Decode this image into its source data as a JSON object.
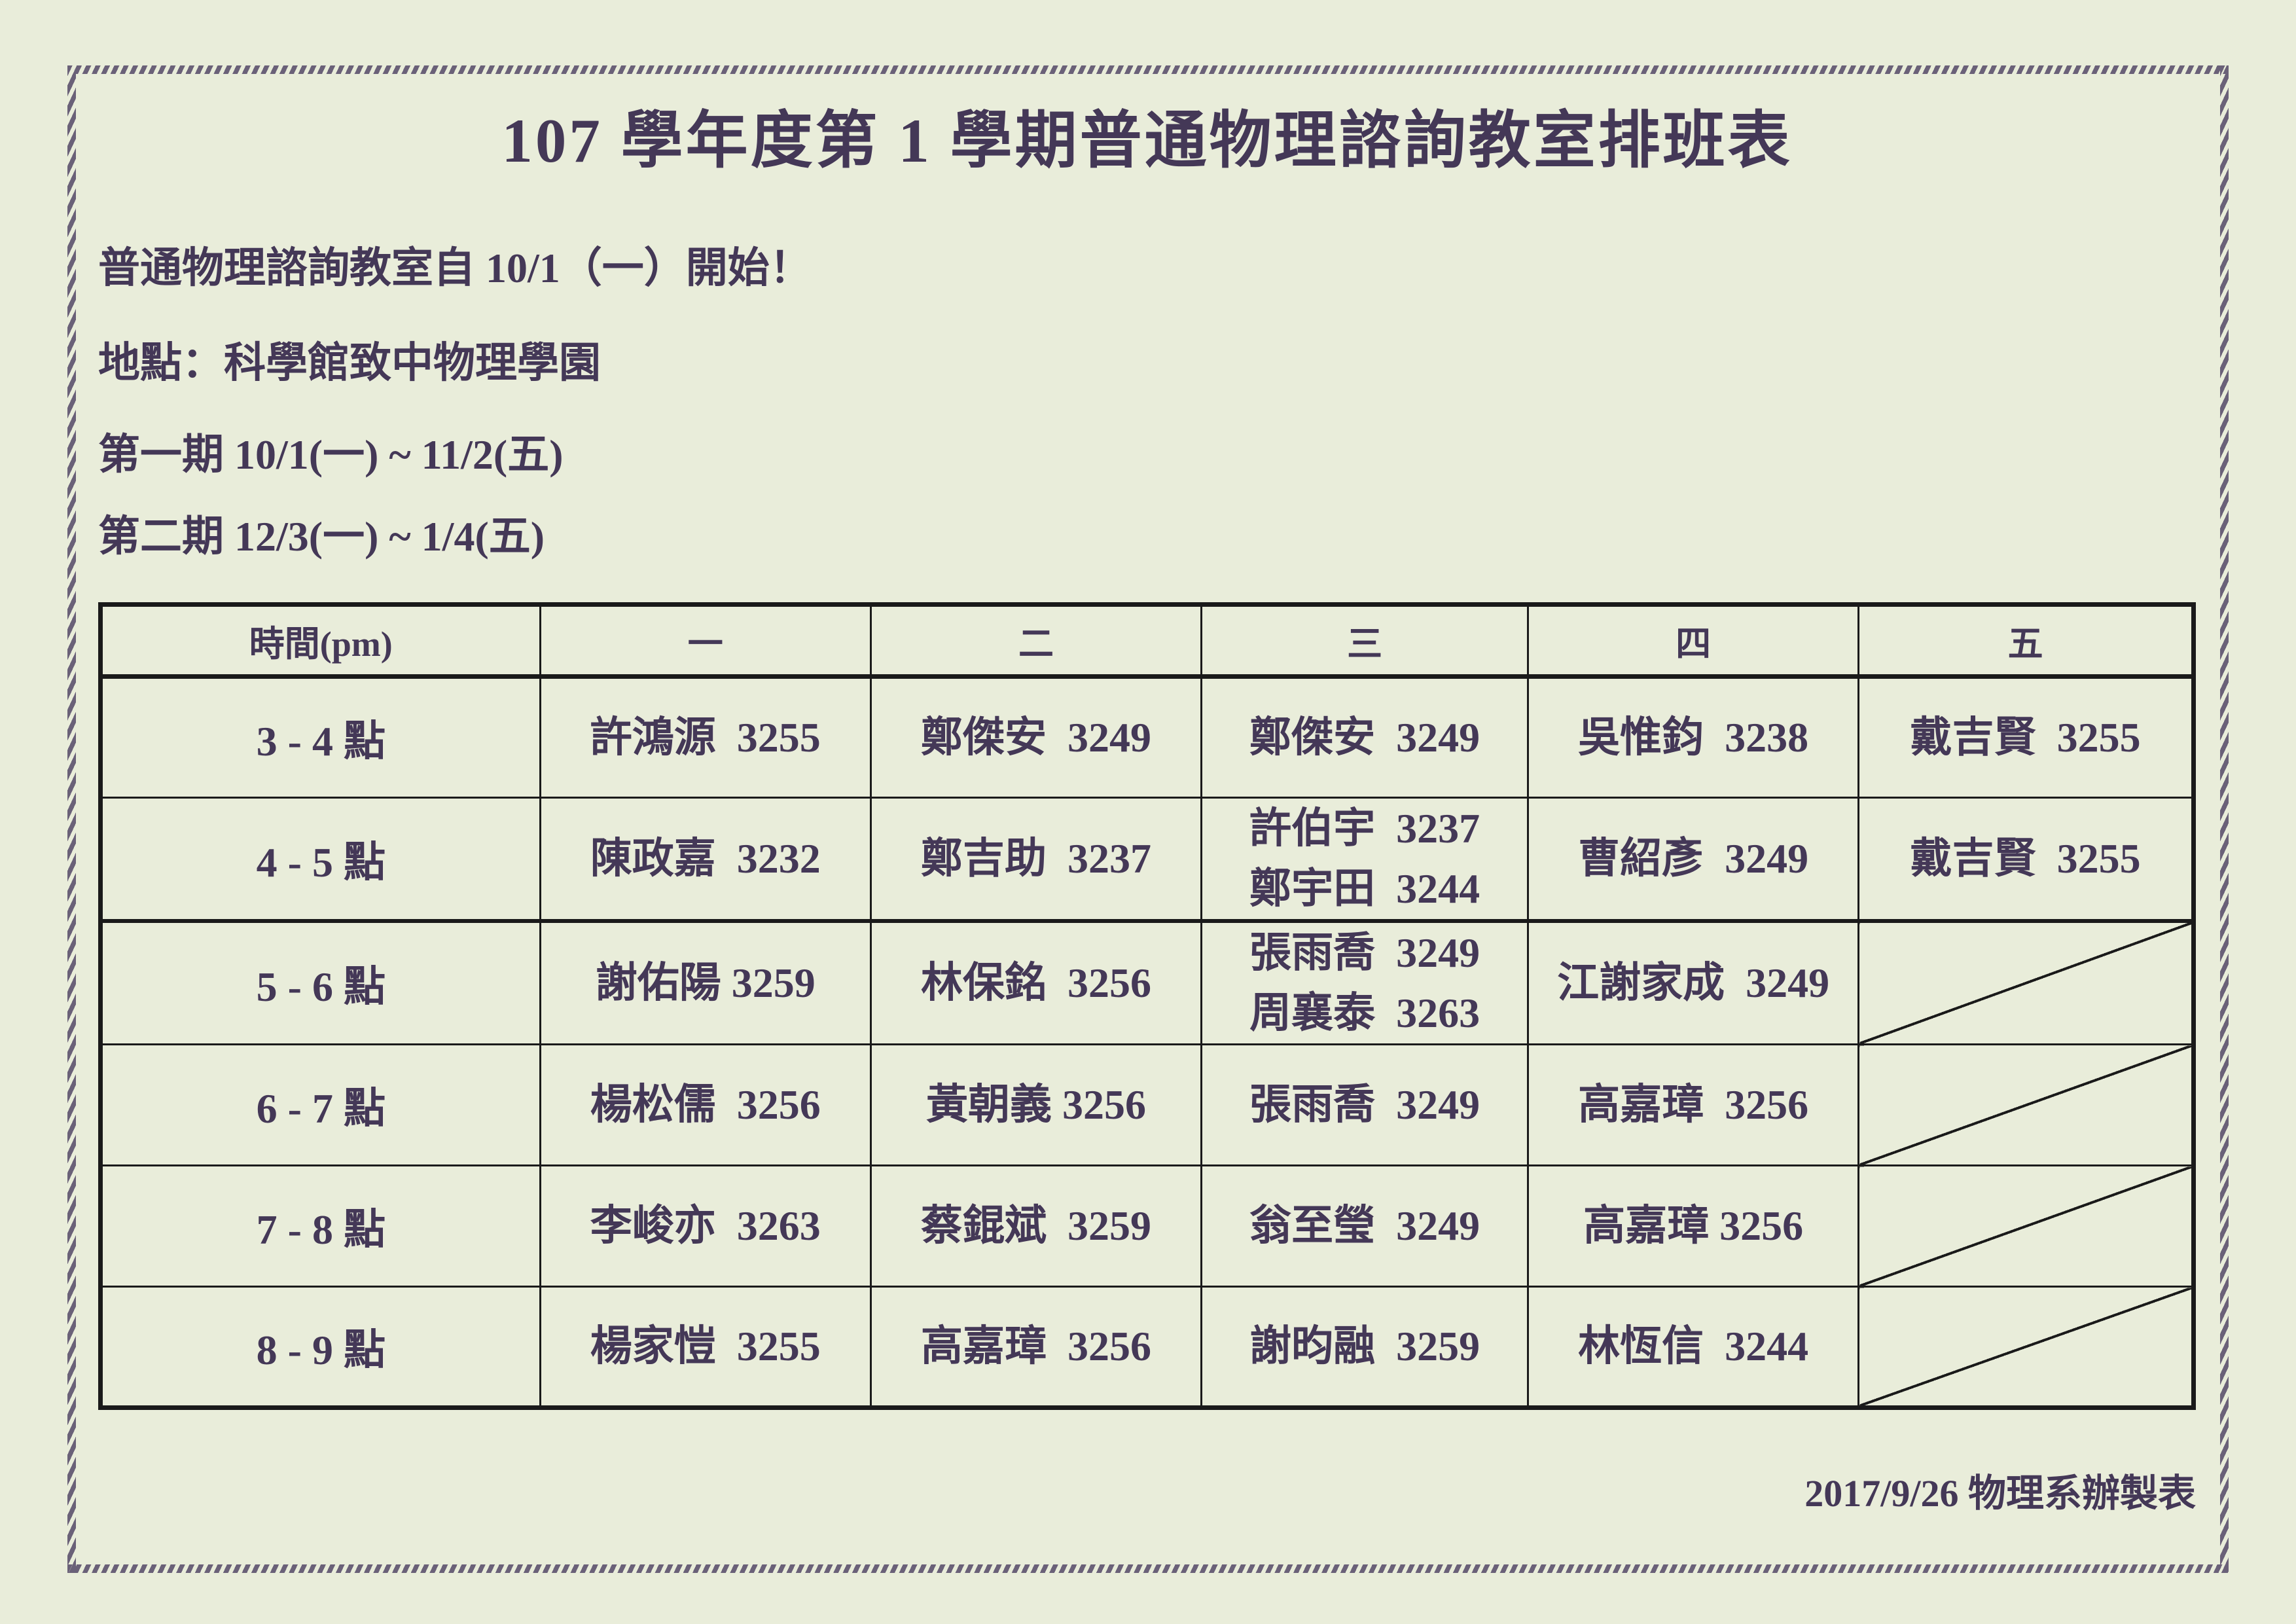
{
  "colors": {
    "background": "#e9edda",
    "text": "#443857",
    "table_line": "#1a1a1a",
    "border_hatch": "#6a6178"
  },
  "page": {
    "title": "107 學年度第 1 學期普通物理諮詢教室排班表",
    "intro": "普通物理諮詢教室自 10/1（一）開始！",
    "location": "地點：科學館致中物理學園",
    "period1": "第一期 10/1(一) ~ 11/2(五)",
    "period2": "第二期 12/3(一) ~ 1/4(五)",
    "footer": "2017/9/26 物理系辦製表"
  },
  "table": {
    "headers": [
      "時間(pm)",
      "一",
      "二",
      "三",
      "四",
      "五"
    ],
    "rows": [
      {
        "time": "3 - 4 點",
        "thick_bottom": false,
        "cells": [
          {
            "lines": [
              "許鴻源  3255"
            ]
          },
          {
            "lines": [
              "鄭傑安  3249"
            ]
          },
          {
            "lines": [
              "鄭傑安  3249"
            ]
          },
          {
            "lines": [
              "吳惟鈞  3238"
            ]
          },
          {
            "lines": [
              "戴吉賢  3255"
            ]
          }
        ]
      },
      {
        "time": "4 - 5 點",
        "thick_bottom": true,
        "cells": [
          {
            "lines": [
              "陳政嘉  3232"
            ]
          },
          {
            "lines": [
              "鄭吉助  3237"
            ]
          },
          {
            "lines": [
              "許伯宇  3237",
              "鄭宇田  3244"
            ]
          },
          {
            "lines": [
              "曹紹彥  3249"
            ]
          },
          {
            "lines": [
              "戴吉賢  3255"
            ]
          }
        ]
      },
      {
        "time": "5 - 6 點",
        "thick_bottom": false,
        "cells": [
          {
            "lines": [
              "謝佑陽 3259"
            ]
          },
          {
            "lines": [
              "林保銘  3256"
            ]
          },
          {
            "lines": [
              "張雨喬  3249",
              "周襄泰  3263"
            ]
          },
          {
            "lines": [
              "江謝家成  3249"
            ]
          },
          {
            "diagonal": true
          }
        ]
      },
      {
        "time": "6 - 7 點",
        "thick_bottom": false,
        "cells": [
          {
            "lines": [
              "楊松儒  3256"
            ]
          },
          {
            "lines": [
              "黃朝義 3256"
            ]
          },
          {
            "lines": [
              "張雨喬  3249"
            ]
          },
          {
            "lines": [
              "高嘉璋  3256"
            ]
          },
          {
            "diagonal": true
          }
        ]
      },
      {
        "time": "7 - 8 點",
        "thick_bottom": false,
        "cells": [
          {
            "lines": [
              "李峻亦  3263"
            ]
          },
          {
            "lines": [
              "蔡錕斌  3259"
            ]
          },
          {
            "lines": [
              "翁至瑩  3249"
            ]
          },
          {
            "lines": [
              "高嘉璋 3256"
            ]
          },
          {
            "diagonal": true
          }
        ]
      },
      {
        "time": "8 - 9 點",
        "thick_bottom": false,
        "cells": [
          {
            "lines": [
              "楊家愷  3255"
            ]
          },
          {
            "lines": [
              "高嘉璋  3256"
            ]
          },
          {
            "lines": [
              "謝昀融  3259"
            ]
          },
          {
            "lines": [
              "林恆信  3244"
            ]
          },
          {
            "diagonal": true
          }
        ]
      }
    ]
  }
}
